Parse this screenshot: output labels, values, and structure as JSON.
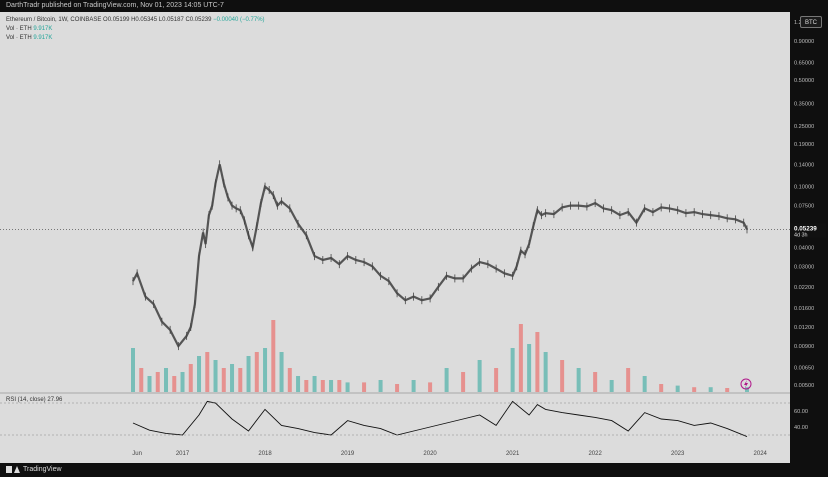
{
  "header": {
    "published": "DarthTradr published on TradingView.com, Nov 01, 2023 14:05 UTC-7"
  },
  "legend": {
    "symbol": "Ethereum / Bitcoin, 1W, COINBASE",
    "ohlc": "O0.05199 H0.05345 L0.05187 C0.05239",
    "change": "−0.00040 (−0.77%)",
    "vol_label_1": "Vol · ETH",
    "vol_value_1": "9.917K",
    "vol_label_2": "Vol · ETH",
    "vol_value_2": "9.917K"
  },
  "currency_badge": "BTC",
  "price_axis": {
    "scale": "log",
    "ticks": [
      "1.20000",
      "0.90000",
      "0.65000",
      "0.50000",
      "0.35000",
      "0.25000",
      "0.19000",
      "0.14000",
      "0.10000",
      "0.07500",
      "0.05239",
      "0.04000",
      "0.03000",
      "0.02200",
      "0.01600",
      "0.01200",
      "0.00900",
      "0.00650",
      "0.00500"
    ],
    "current_price": "0.05239",
    "countdown": "4d 3h"
  },
  "rsi": {
    "label": "RSI (14, close)",
    "value": "27.96",
    "ticks": [
      "60.00",
      "40.00"
    ]
  },
  "time_axis": {
    "labels": [
      "Jun",
      "2017",
      "2018",
      "2019",
      "2020",
      "2021",
      "2022",
      "2023",
      "2024"
    ]
  },
  "footer": {
    "brand": "TradingView"
  },
  "colors": {
    "up": "#26a69a",
    "down": "#ef5350",
    "candle": "#555555",
    "chart_bg": "#dcdcdc",
    "frame": "#0f0f0f"
  },
  "chart_data": {
    "type": "line",
    "title": "Ethereum / Bitcoin, 1W, COINBASE",
    "yscale": "log",
    "ylim": [
      0.0045,
      1.2
    ],
    "x": [
      2016.4,
      2016.45,
      2016.55,
      2016.65,
      2016.75,
      2016.85,
      2016.95,
      2017.05,
      2017.1,
      2017.15,
      2017.2,
      2017.25,
      2017.28,
      2017.32,
      2017.36,
      2017.4,
      2017.45,
      2017.5,
      2017.55,
      2017.6,
      2017.65,
      2017.7,
      2017.75,
      2017.8,
      2017.85,
      2017.9,
      2017.95,
      2018.0,
      2018.05,
      2018.1,
      2018.15,
      2018.2,
      2018.3,
      2018.4,
      2018.5,
      2018.6,
      2018.7,
      2018.8,
      2018.9,
      2019.0,
      2019.1,
      2019.2,
      2019.3,
      2019.4,
      2019.5,
      2019.6,
      2019.7,
      2019.8,
      2019.9,
      2020.0,
      2020.1,
      2020.2,
      2020.3,
      2020.4,
      2020.5,
      2020.6,
      2020.7,
      2020.8,
      2020.9,
      2021.0,
      2021.05,
      2021.1,
      2021.15,
      2021.2,
      2021.25,
      2021.3,
      2021.35,
      2021.4,
      2021.5,
      2021.6,
      2021.7,
      2021.8,
      2021.9,
      2022.0,
      2022.1,
      2022.2,
      2022.3,
      2022.4,
      2022.5,
      2022.6,
      2022.7,
      2022.8,
      2022.9,
      2023.0,
      2023.1,
      2023.2,
      2023.3,
      2023.4,
      2023.5,
      2023.6,
      2023.7,
      2023.8,
      2023.84
    ],
    "series": [
      {
        "values": [
          0.024,
          0.027,
          0.019,
          0.017,
          0.013,
          0.0115,
          0.009,
          0.0105,
          0.012,
          0.017,
          0.035,
          0.05,
          0.042,
          0.065,
          0.075,
          0.105,
          0.14,
          0.105,
          0.085,
          0.075,
          0.072,
          0.07,
          0.06,
          0.048,
          0.04,
          0.055,
          0.078,
          0.1,
          0.095,
          0.088,
          0.075,
          0.08,
          0.072,
          0.057,
          0.048,
          0.035,
          0.033,
          0.034,
          0.031,
          0.035,
          0.033,
          0.032,
          0.03,
          0.026,
          0.024,
          0.02,
          0.018,
          0.019,
          0.018,
          0.0185,
          0.022,
          0.026,
          0.025,
          0.025,
          0.029,
          0.032,
          0.031,
          0.029,
          0.027,
          0.026,
          0.03,
          0.038,
          0.036,
          0.042,
          0.055,
          0.07,
          0.065,
          0.067,
          0.066,
          0.073,
          0.075,
          0.075,
          0.074,
          0.078,
          0.072,
          0.07,
          0.065,
          0.068,
          0.058,
          0.072,
          0.068,
          0.073,
          0.072,
          0.07,
          0.067,
          0.068,
          0.066,
          0.065,
          0.064,
          0.062,
          0.061,
          0.058,
          0.05239
        ]
      }
    ],
    "volume": {
      "x": [
        2016.4,
        2016.5,
        2016.6,
        2016.7,
        2016.8,
        2016.9,
        2017.0,
        2017.1,
        2017.2,
        2017.3,
        2017.4,
        2017.5,
        2017.6,
        2017.7,
        2017.8,
        2017.9,
        2018.0,
        2018.1,
        2018.2,
        2018.3,
        2018.4,
        2018.5,
        2018.6,
        2018.7,
        2018.8,
        2018.9,
        2019.0,
        2019.2,
        2019.4,
        2019.6,
        2019.8,
        2020.0,
        2020.2,
        2020.4,
        2020.6,
        2020.8,
        2021.0,
        2021.1,
        2021.2,
        2021.3,
        2021.4,
        2021.6,
        2021.8,
        2022.0,
        2022.2,
        2022.4,
        2022.6,
        2022.8,
        2023.0,
        2023.2,
        2023.4,
        2023.6,
        2023.84
      ],
      "relative": [
        0.55,
        0.3,
        0.2,
        0.25,
        0.3,
        0.2,
        0.25,
        0.35,
        0.45,
        0.5,
        0.4,
        0.3,
        0.35,
        0.3,
        0.45,
        0.5,
        0.55,
        0.9,
        0.5,
        0.3,
        0.2,
        0.15,
        0.2,
        0.15,
        0.15,
        0.15,
        0.12,
        0.12,
        0.15,
        0.1,
        0.15,
        0.12,
        0.3,
        0.25,
        0.4,
        0.3,
        0.55,
        0.85,
        0.6,
        0.75,
        0.5,
        0.4,
        0.3,
        0.25,
        0.15,
        0.3,
        0.2,
        0.1,
        0.08,
        0.06,
        0.06,
        0.05,
        0.06
      ]
    },
    "rsi": {
      "x": [
        2016.4,
        2016.6,
        2016.8,
        2017.0,
        2017.2,
        2017.3,
        2017.4,
        2017.6,
        2017.8,
        2018.0,
        2018.2,
        2018.4,
        2018.6,
        2018.8,
        2019.0,
        2019.2,
        2019.4,
        2019.6,
        2019.8,
        2020.0,
        2020.2,
        2020.4,
        2020.6,
        2020.8,
        2021.0,
        2021.2,
        2021.3,
        2021.4,
        2021.6,
        2021.8,
        2022.0,
        2022.2,
        2022.4,
        2022.6,
        2022.8,
        2023.0,
        2023.2,
        2023.4,
        2023.6,
        2023.84
      ],
      "values": [
        45,
        36,
        32,
        30,
        55,
        72,
        70,
        50,
        35,
        62,
        42,
        38,
        33,
        30,
        48,
        42,
        38,
        30,
        35,
        40,
        45,
        50,
        55,
        42,
        72,
        55,
        68,
        62,
        58,
        55,
        52,
        48,
        35,
        58,
        50,
        48,
        42,
        45,
        38,
        27.96
      ]
    }
  }
}
